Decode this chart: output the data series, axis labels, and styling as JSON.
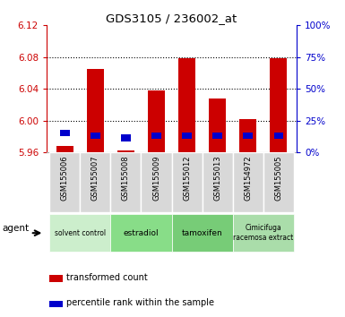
{
  "title": "GDS3105 / 236002_at",
  "samples": [
    "GSM155006",
    "GSM155007",
    "GSM155008",
    "GSM155009",
    "GSM155012",
    "GSM155013",
    "GSM154972",
    "GSM155005"
  ],
  "red_values": [
    5.968,
    6.065,
    5.962,
    6.038,
    6.079,
    6.028,
    6.002,
    6.079
  ],
  "blue_values": [
    5.984,
    5.981,
    5.978,
    5.981,
    5.981,
    5.981,
    5.981,
    5.981
  ],
  "ylim": [
    5.96,
    6.12
  ],
  "yticks_left": [
    5.96,
    6.0,
    6.04,
    6.08,
    6.12
  ],
  "yticks_right": [
    0,
    25,
    50,
    75,
    100
  ],
  "bar_width": 0.55,
  "baseline": 5.96,
  "red_color": "#cc0000",
  "blue_color": "#0000cc",
  "left_axis_color": "#cc0000",
  "right_axis_color": "#0000cc",
  "group_info": [
    {
      "label": "solvent control",
      "start": 0,
      "end": 1,
      "color": "#cceecc"
    },
    {
      "label": "estradiol",
      "start": 2,
      "end": 3,
      "color": "#88cc88"
    },
    {
      "label": "tamoxifen",
      "start": 4,
      "end": 5,
      "color": "#88cc88"
    },
    {
      "label": "Cimicifuga\nracemosa extract",
      "start": 6,
      "end": 7,
      "color": "#aaddaa"
    }
  ],
  "gray_box_color": "#d8d8d8",
  "green_row1_color": "#cceecc",
  "green_row2_color": "#88cc88"
}
